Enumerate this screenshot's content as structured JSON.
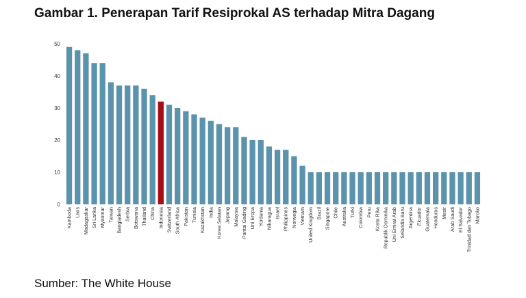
{
  "chart_data": {
    "type": "bar",
    "title": "Gambar 1. Penerapan Tarif Resiprokal AS terhadap Mitra Dagang",
    "xlabel": "",
    "ylabel": "",
    "ylim": [
      0,
      50
    ],
    "yticks": [
      0,
      10,
      20,
      30,
      40,
      50
    ],
    "grid": false,
    "legend": "none",
    "bar_color": "#5b93ad",
    "highlight_color": "#a50f15",
    "highlight_category": "Indonesia",
    "categories": [
      "Kamboda",
      "Laos",
      "Madagaskar",
      "Sri Lanka",
      "Myanmar",
      "Taiwan",
      "Bangladesh",
      "Serbia",
      "Botswana",
      "Thailand",
      "China",
      "Indonesia",
      "Switzerland",
      "South Africa",
      "Pakistan",
      "Tunisia",
      "Kazakhstan",
      "India",
      "Korea Selatan",
      "Jepang",
      "Malaysia",
      "Pantai Gading",
      "Uni Eropa",
      "Yordania",
      "Nikaragua",
      "Israel",
      "Philippines",
      "Norwegia",
      "Vietnam",
      "United Kingdom",
      "Brazil",
      "Singapore",
      "Chile",
      "Australia",
      "Turki",
      "Colombia",
      "Peru",
      "Kosta Rika",
      "Republik Dominika",
      "Uni Emirat Arab",
      "Selandia Baru",
      "Argentina",
      "Ekuador",
      "Guatemala",
      "Honduras",
      "Mesir",
      "Arab Saudi",
      "El Salvador",
      "Trinidad dan Tobago",
      "Maroko"
    ],
    "values": [
      49,
      48,
      47,
      44,
      44,
      38,
      37,
      37,
      37,
      36,
      34,
      32,
      31,
      30,
      29,
      28,
      27,
      26,
      25,
      24,
      24,
      21,
      20,
      20,
      18,
      17,
      17,
      15,
      12,
      10,
      10,
      10,
      10,
      10,
      10,
      10,
      10,
      10,
      10,
      10,
      10,
      10,
      10,
      10,
      10,
      10,
      10,
      10,
      10,
      10
    ]
  },
  "source": "Sumber: The White House"
}
